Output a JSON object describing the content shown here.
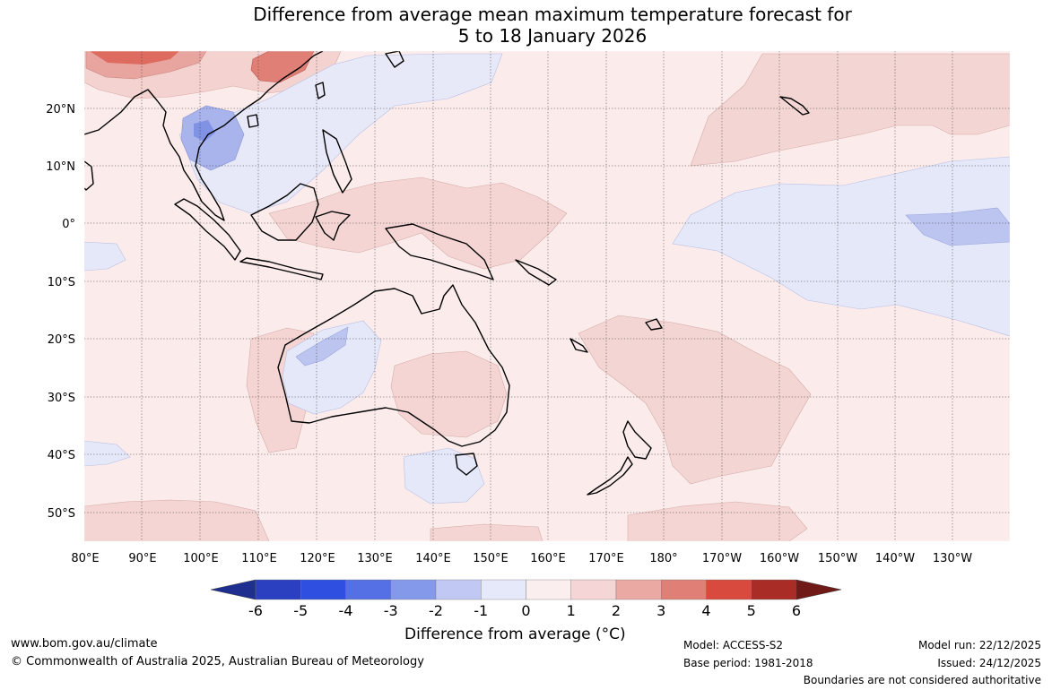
{
  "title": {
    "line1": "Difference from average mean maximum temperature forecast for",
    "line2": "5 to 18 January 2026"
  },
  "map": {
    "lat_labels": [
      "20°N",
      "10°N",
      "0°",
      "10°S",
      "20°S",
      "30°S",
      "40°S",
      "50°S"
    ],
    "lon_labels": [
      "80°E",
      "90°E",
      "100°E",
      "110°E",
      "120°E",
      "130°E",
      "140°E",
      "150°E",
      "160°E",
      "170°E",
      "180°",
      "170°W",
      "160°W",
      "150°W",
      "140°W",
      "130°W"
    ]
  },
  "colorbar": {
    "ticks": [
      "-6",
      "-5",
      "-4",
      "-3",
      "-2",
      "-1",
      "0",
      "1",
      "2",
      "3",
      "4",
      "5",
      "6"
    ],
    "colors": [
      "#1f2f8f",
      "#2b3fc1",
      "#2f4fe0",
      "#5570e4",
      "#8599ea",
      "#c0c8f3",
      "#e6e9fa",
      "#fbeeee",
      "#f5d5d5",
      "#eba9a3",
      "#e07f76",
      "#d84a3e",
      "#a92c26",
      "#6f1a17"
    ],
    "label": "Difference from average (°C)"
  },
  "footer": {
    "website": "www.bom.gov.au/climate",
    "copyright": "© Commonwealth of Australia 2025, Australian Bureau of Meteorology",
    "model": "Model: ACCESS-S2",
    "base_period": "Base period: 1981-2018",
    "model_run": "Model run: 22/12/2025",
    "issued": "Issued: 24/12/2025",
    "disclaimer": "Boundaries are not considered authoritative"
  }
}
